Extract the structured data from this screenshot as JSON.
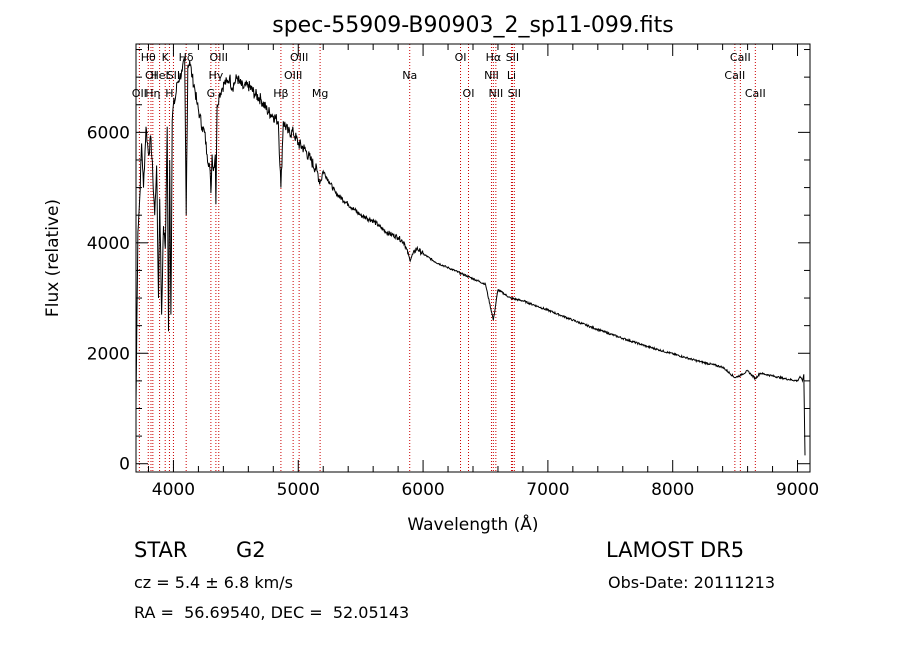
{
  "chart_data": {
    "type": "line",
    "title": "spec-55909-B90903_2_sp11-099.fits",
    "xlabel": "Wavelength (Å)",
    "ylabel": "Flux (relative)",
    "xlim": [
      3700,
      9100
    ],
    "ylim": [
      -150,
      7600
    ],
    "xticks": [
      4000,
      5000,
      6000,
      7000,
      8000,
      9000
    ],
    "xtick_labels": [
      "4000",
      "5000",
      "6000",
      "7000",
      "8000",
      "9000"
    ],
    "yticks": [
      0,
      2000,
      4000,
      6000
    ],
    "ytick_labels": [
      "0",
      "2000",
      "4000",
      "6000"
    ],
    "grid": false,
    "legend": "none",
    "line_color": "#000000",
    "marker_color": "#cc0000",
    "series": [
      {
        "x": [
          3700,
          3715,
          3730,
          3745,
          3760,
          3780,
          3800,
          3820,
          3835,
          3850,
          3865,
          3880,
          3890,
          3905,
          3920,
          3935,
          3950,
          3960,
          3970,
          3980,
          3990,
          4000,
          4015,
          4030,
          4050,
          4070,
          4090,
          4102,
          4115,
          4130,
          4150,
          4170,
          4190,
          4210,
          4230,
          4250,
          4270,
          4290,
          4300,
          4310,
          4320,
          4335,
          4340,
          4350,
          4370,
          4390,
          4410,
          4430,
          4450,
          4470,
          4490,
          4510,
          4530,
          4560,
          4600,
          4650,
          4700,
          4750,
          4800,
          4840,
          4861,
          4880,
          4920,
          4960,
          5000,
          5050,
          5100,
          5150,
          5175,
          5200,
          5250,
          5300,
          5350,
          5400,
          5450,
          5500,
          5550,
          5600,
          5650,
          5700,
          5750,
          5800,
          5850,
          5893,
          5950,
          6000,
          6100,
          6200,
          6300,
          6400,
          6500,
          6563,
          6600,
          6700,
          6800,
          7000,
          7200,
          7400,
          7600,
          7800,
          8000,
          8200,
          8400,
          8498,
          8542,
          8600,
          8662,
          8700,
          8800,
          8900,
          9000,
          9020,
          9040,
          9050,
          9060
        ],
        "y": [
          1100,
          4200,
          4800,
          5800,
          5000,
          6100,
          5600,
          5900,
          5200,
          4500,
          5400,
          3000,
          4800,
          2700,
          4300,
          3900,
          6100,
          2400,
          5500,
          2700,
          6200,
          6500,
          6600,
          6900,
          7000,
          7100,
          7300,
          4500,
          7200,
          7300,
          7000,
          6800,
          6500,
          6300,
          6100,
          6000,
          5600,
          5400,
          4900,
          5600,
          5300,
          5600,
          4700,
          6500,
          6700,
          6800,
          6900,
          6900,
          7000,
          6800,
          6900,
          7000,
          6900,
          6800,
          6850,
          6700,
          6600,
          6400,
          6300,
          6200,
          5000,
          6200,
          6000,
          6000,
          5800,
          5700,
          5500,
          5300,
          5100,
          5300,
          5100,
          4900,
          4800,
          4700,
          4600,
          4500,
          4450,
          4400,
          4300,
          4200,
          4150,
          4100,
          4000,
          3700,
          3900,
          3800,
          3650,
          3550,
          3450,
          3350,
          3250,
          2600,
          3150,
          3000,
          2950,
          2780,
          2600,
          2430,
          2270,
          2120,
          1990,
          1860,
          1750,
          1560,
          1600,
          1680,
          1540,
          1640,
          1590,
          1540,
          1500,
          1580,
          1500,
          1620,
          150
        ]
      }
    ],
    "lines": [
      {
        "x": 3727,
        "labels": [
          "OII"
        ],
        "row": 3
      },
      {
        "x": 3798,
        "labels": [
          "Hθ"
        ],
        "row": 1
      },
      {
        "x": 3820,
        "labels": [
          "OI"
        ],
        "row": 2
      },
      {
        "x": 3835,
        "labels": [
          "Hη"
        ],
        "row": 3
      },
      {
        "x": 3889,
        "labels": [
          "HeI"
        ],
        "row": 2
      },
      {
        "x": 3934,
        "labels": [
          "K"
        ],
        "row": 1
      },
      {
        "x": 3968,
        "labels": [
          "H"
        ],
        "row": 3
      },
      {
        "x": 4000,
        "labels": [
          "SII"
        ],
        "row": 2
      },
      {
        "x": 4102,
        "labels": [
          "Hδ"
        ],
        "row": 1
      },
      {
        "x": 4300,
        "labels": [
          "G"
        ],
        "row": 3
      },
      {
        "x": 4340,
        "labels": [
          "Hγ"
        ],
        "row": 2
      },
      {
        "x": 4363,
        "labels": [
          "OIII"
        ],
        "row": 1
      },
      {
        "x": 4861,
        "labels": [
          "Hβ"
        ],
        "row": 3
      },
      {
        "x": 4959,
        "labels": [
          "OIII"
        ],
        "row": 2
      },
      {
        "x": 5007,
        "labels": [
          "OIII"
        ],
        "row": 1
      },
      {
        "x": 5175,
        "labels": [
          "Mg"
        ],
        "row": 3
      },
      {
        "x": 5893,
        "labels": [
          "Na"
        ],
        "row": 2
      },
      {
        "x": 6300,
        "labels": [
          "OI"
        ],
        "row": 1
      },
      {
        "x": 6364,
        "labels": [
          "OI"
        ],
        "row": 3
      },
      {
        "x": 6548,
        "labels": [
          "NII"
        ],
        "row": 2
      },
      {
        "x": 6563,
        "labels": [
          "Hα"
        ],
        "row": 1
      },
      {
        "x": 6583,
        "labels": [
          "NII"
        ],
        "row": 3
      },
      {
        "x": 6708,
        "labels": [
          "Li"
        ],
        "row": 2
      },
      {
        "x": 6716,
        "labels": [
          "SII"
        ],
        "row": 1
      },
      {
        "x": 6731,
        "labels": [
          "SII"
        ],
        "row": 3
      },
      {
        "x": 8498,
        "labels": [
          "CaII"
        ],
        "row": 2
      },
      {
        "x": 8542,
        "labels": [
          "CaII"
        ],
        "row": 1
      },
      {
        "x": 8662,
        "labels": [
          "CaII"
        ],
        "row": 3
      }
    ]
  },
  "info": {
    "class": "STAR",
    "subclass": "G2",
    "survey": "LAMOST DR5",
    "cz": "cz = 5.4 ± 6.8 km/s",
    "obs_date": "Obs-Date: 20111213",
    "coords": "RA =  56.69540, DEC =  52.05143"
  }
}
